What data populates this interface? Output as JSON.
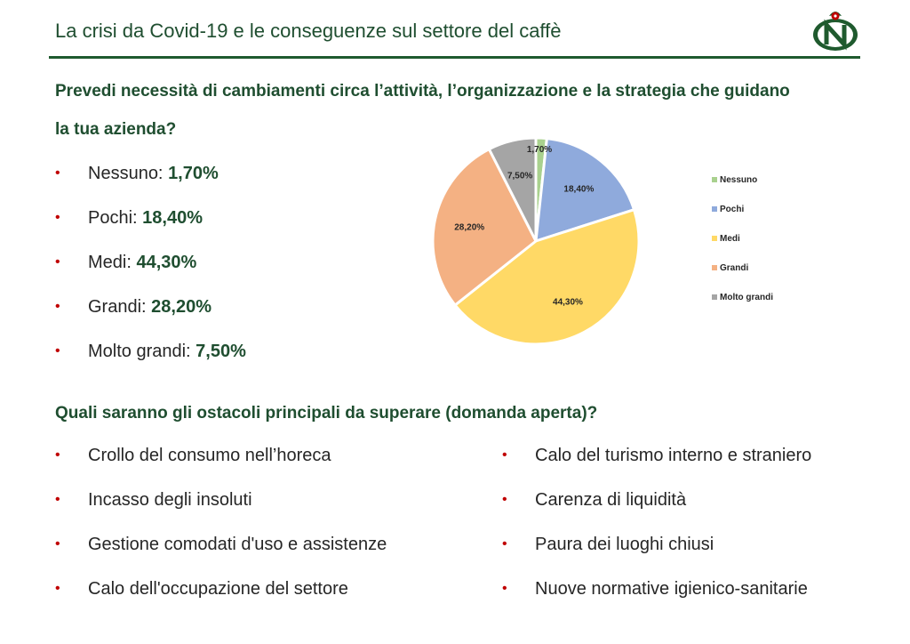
{
  "header": {
    "title": "La crisi da Covid-19 e le conseguenze sul settore del caffè",
    "logo_letter": "N",
    "brand_color": "#1f5a2e",
    "accent_color": "#c00000"
  },
  "question1": {
    "line1": "Prevedi necessità di cambiamenti circa l’attività, l’organizzazione e la strategia che guidano",
    "line2": "la tua azienda?"
  },
  "answers": [
    {
      "label": "Nessuno: ",
      "pct": "1,70%"
    },
    {
      "label": "Pochi: ",
      "pct": "18,40%"
    },
    {
      "label": "Medi: ",
      "pct": "44,30%"
    },
    {
      "label": "Grandi: ",
      "pct": "28,20%"
    },
    {
      "label": "Molto grandi: ",
      "pct": "7,50%"
    }
  ],
  "question2": "Quali saranno gli ostacoli principali da superare (domanda aperta)?",
  "obstacles_left": [
    "Crollo del consumo nell’horeca",
    "Incasso degli insoluti",
    "Gestione comodati d'uso e assistenze",
    "Calo dell'occupazione del settore"
  ],
  "obstacles_right": [
    "Calo del turismo interno e straniero",
    "Carenza di liquidità",
    "Paura dei luoghi chiusi",
    "Nuove normative igienico-sanitarie"
  ],
  "chart_data": {
    "type": "pie",
    "categories": [
      "Nessuno",
      "Pochi",
      "Medi",
      "Grandi",
      "Molto grandi"
    ],
    "values": [
      1.7,
      18.4,
      44.3,
      28.2,
      7.5
    ],
    "data_labels": [
      "1,70%",
      "18,40%",
      "44,30%",
      "28,20%",
      "7,50%"
    ],
    "colors": [
      "#a9d18e",
      "#8faadc",
      "#ffd966",
      "#f4b183",
      "#a5a5a5"
    ],
    "legend": "right",
    "title": ""
  }
}
